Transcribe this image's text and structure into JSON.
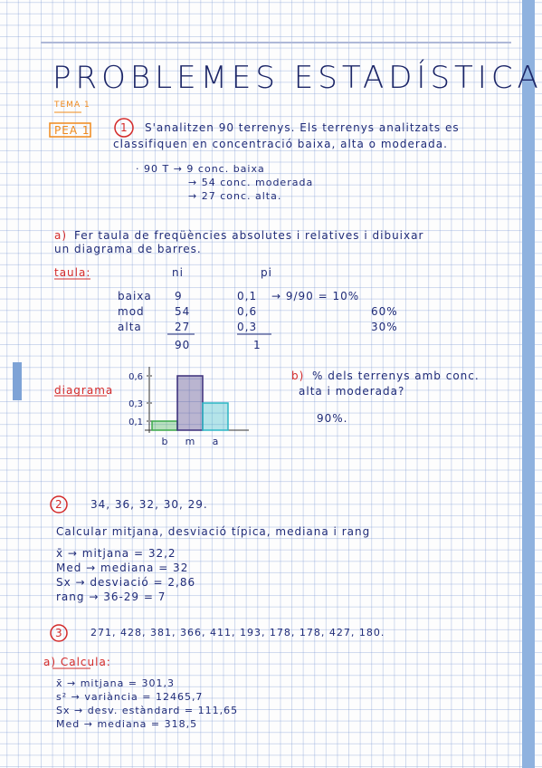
{
  "header": {
    "title": "PROBLEMES ESTADÍSTICA",
    "topic": "TEMA 1",
    "tag": "PEA 1"
  },
  "problem1": {
    "number": "1",
    "statement": [
      "S'analitzen 90 terrenys. Els terrenys analitzats es",
      "classifiquen en concentració baixa, alta o moderada."
    ],
    "data": [
      "· 90 T → 9 conc. baixa",
      "→ 54 conc. moderada",
      "→ 27 conc. alta."
    ],
    "part_a": {
      "letter": "a)",
      "statement": [
        "Fer taula de freqüències absolutes i relatives i dibuixar",
        "un diagrama de barres."
      ],
      "table_label": "taula:",
      "table": {
        "header": [
          "ni",
          "pi"
        ],
        "rows": [
          [
            "baixa",
            "9",
            "0,1"
          ],
          [
            "mod",
            "54",
            "0,6"
          ],
          [
            "alta",
            "27",
            "0,3"
          ]
        ],
        "percent": [
          "→ 9/90 = 10%",
          "60%",
          "30%"
        ],
        "totals": [
          "90",
          "1"
        ]
      },
      "diagram": {
        "label": "diagrama",
        "yticks": [
          {
            "value": 0.6,
            "label": "0,6"
          },
          {
            "value": 0.3,
            "label": "0,3"
          },
          {
            "value": 0.1,
            "label": "0,1"
          }
        ],
        "categories": [
          "b",
          "m",
          "a"
        ],
        "values": [
          0.1,
          0.6,
          0.3
        ],
        "colors": [
          "#3aa84a",
          "#3b2f7a",
          "#2bb5c4"
        ]
      }
    },
    "part_b": {
      "letter": "b)",
      "statement": [
        "% dels terrenys amb conc.",
        "alta i moderada?"
      ],
      "answer": "90%."
    }
  },
  "problem2": {
    "number": "2",
    "data": "34, 36, 32, 30, 29.",
    "statement": "Calcular mitjana, desviació típica, mediana i rang",
    "results": [
      "x̄ → mitjana = 32,2",
      "Med → mediana = 32",
      "Sx → desviació = 2,86",
      "rang → 36-29 = 7"
    ]
  },
  "problem3": {
    "number": "3",
    "data": "271, 428, 381, 366, 411, 193, 178, 178, 427, 180.",
    "part_a": "a) Calcula:",
    "results": [
      "x̄ → mitjana = 301,3",
      "s² → variància = 12465,7",
      "Sx → desv. estàndard = 111,65",
      "Med → mediana = 318,5"
    ]
  }
}
